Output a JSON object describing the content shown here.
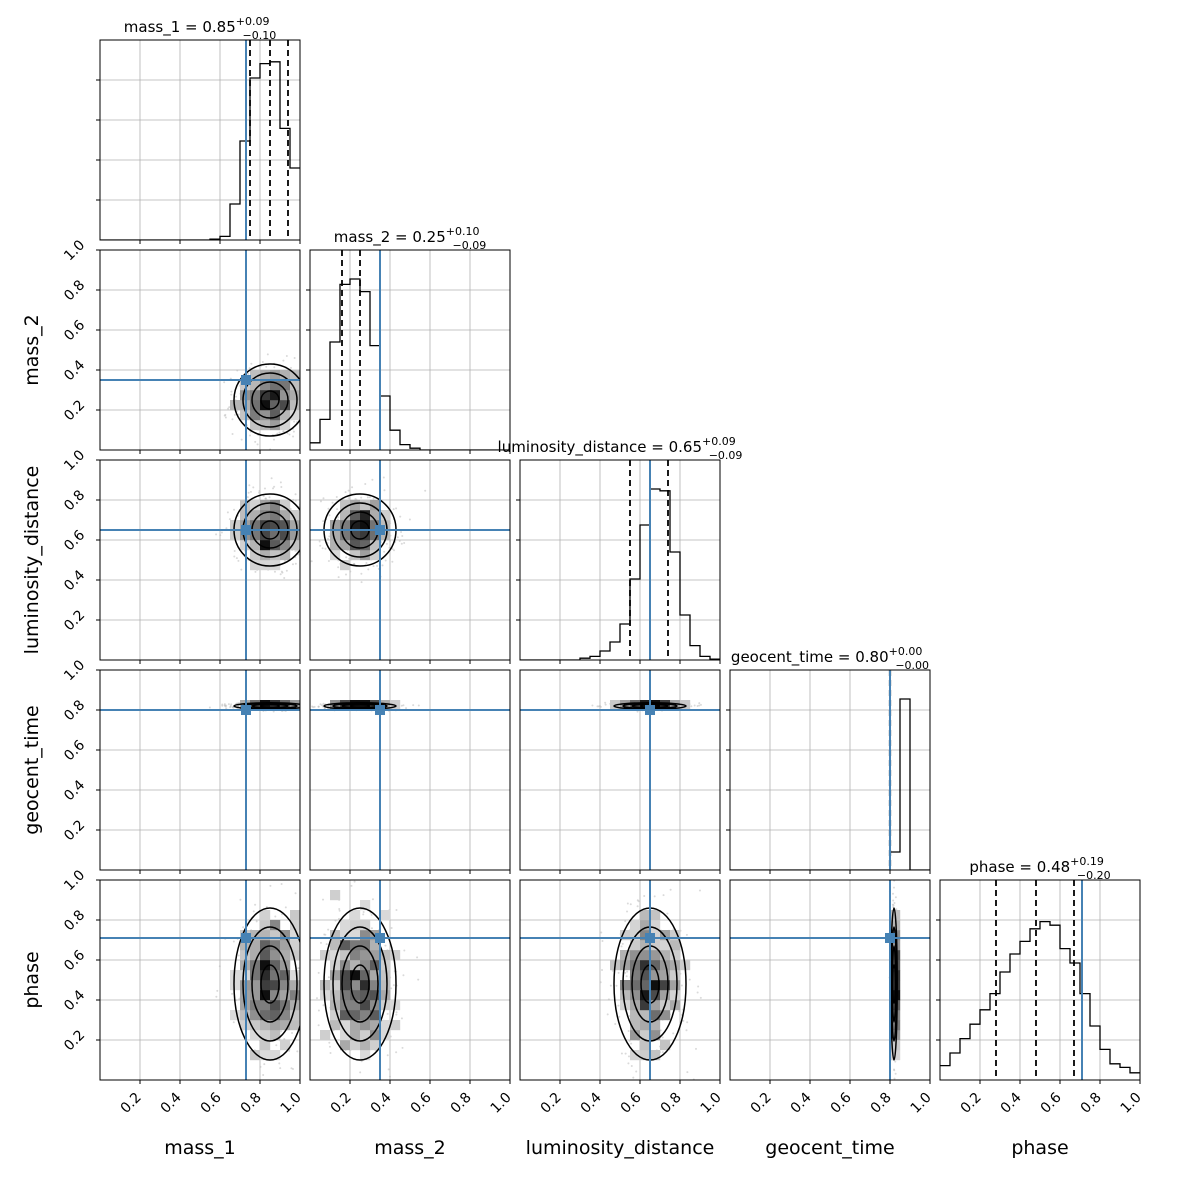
{
  "chart_data": {
    "type": "corner",
    "parameters": [
      "mass_1",
      "mass_2",
      "luminosity_distance",
      "geocent_time",
      "phase"
    ],
    "axis_range": [
      0,
      1
    ],
    "tick_labels": [
      "0.2",
      "0.4",
      "0.6",
      "0.8",
      "1.0"
    ],
    "tick_values": [
      0.2,
      0.4,
      0.6,
      0.8,
      1.0
    ],
    "grid": true,
    "truth_color": "#4682b4",
    "truths": [
      0.73,
      0.35,
      0.65,
      0.8,
      0.71
    ],
    "diagonal": [
      {
        "parameter": "mass_1",
        "title_prefix": "mass_1 = ",
        "median_text": "0.85",
        "plus_text": "+0.09",
        "minus_text": "−0.10",
        "quantiles": [
          0.75,
          0.85,
          0.94
        ],
        "hist": [
          0,
          0,
          0,
          0,
          0,
          0,
          0,
          0,
          0,
          0,
          0,
          0.005,
          0.02,
          0.2,
          0.55,
          0.9,
          0.98,
          0.99,
          0.62,
          0.4
        ]
      },
      {
        "parameter": "mass_2",
        "title_prefix": "mass_2 = ",
        "median_text": "0.25",
        "plus_text": "+0.10",
        "minus_text": "−0.09",
        "quantiles": [
          0.16,
          0.25,
          0.35
        ],
        "hist": [
          0.04,
          0.17,
          0.6,
          0.92,
          0.95,
          0.88,
          0.58,
          0.3,
          0.11,
          0.03,
          0.01,
          0,
          0,
          0,
          0,
          0,
          0,
          0,
          0,
          0
        ]
      },
      {
        "parameter": "luminosity_distance",
        "title_prefix": "luminosity_distance = ",
        "median_text": "0.65",
        "plus_text": "+0.09",
        "minus_text": "−0.09",
        "quantiles": [
          0.55,
          0.65,
          0.74
        ],
        "hist": [
          0,
          0,
          0,
          0,
          0,
          0,
          0.01,
          0.02,
          0.05,
          0.1,
          0.2,
          0.45,
          0.75,
          0.95,
          0.94,
          0.6,
          0.25,
          0.08,
          0.02,
          0.005
        ]
      },
      {
        "parameter": "geocent_time",
        "title_prefix": "geocent_time = ",
        "median_text": "0.80",
        "plus_text": "+0.00",
        "minus_text": "−0.00",
        "quantiles": [
          0.799,
          0.8,
          0.801
        ],
        "hist": [
          0,
          0,
          0,
          0,
          0,
          0,
          0,
          0,
          0,
          0,
          0,
          0,
          0,
          0,
          0,
          0,
          0.1,
          0.95,
          0,
          0
        ]
      },
      {
        "parameter": "phase",
        "title_prefix": "phase = ",
        "median_text": "0.48",
        "plus_text": "+0.19",
        "minus_text": "−0.20",
        "quantiles": [
          0.28,
          0.48,
          0.67
        ],
        "hist": [
          0.08,
          0.15,
          0.23,
          0.31,
          0.39,
          0.48,
          0.6,
          0.7,
          0.77,
          0.84,
          0.88,
          0.86,
          0.73,
          0.65,
          0.48,
          0.3,
          0.17,
          0.09,
          0.07,
          0.04
        ]
      }
    ],
    "posterior": {
      "mean": [
        0.85,
        0.25,
        0.65,
        0.82,
        0.48
      ],
      "sd": [
        0.09,
        0.09,
        0.09,
        0.008,
        0.19
      ]
    },
    "contour_levels_sigma": [
      0.5,
      1.0,
      1.5,
      2.0
    ]
  }
}
